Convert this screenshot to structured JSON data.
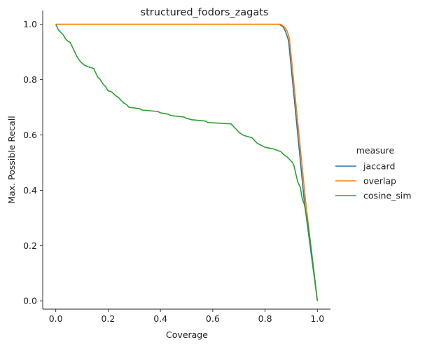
{
  "chart_data": {
    "type": "line",
    "title": "structured_fodors_zagats",
    "xlabel": "Coverage",
    "ylabel": "Max. Possible Recall",
    "xlim": [
      -0.05,
      1.05
    ],
    "ylim": [
      -0.03,
      1.05
    ],
    "xticks": [
      "0.0",
      "0.2",
      "0.4",
      "0.6",
      "0.8",
      "1.0"
    ],
    "yticks": [
      "0.0",
      "0.2",
      "0.4",
      "0.6",
      "0.8",
      "1.0"
    ],
    "grid": false,
    "legend": {
      "title": "measure",
      "placement": "right"
    },
    "series": [
      {
        "name": "jaccard",
        "color": "#1f77b4",
        "points": [
          [
            0.0,
            1.0
          ],
          [
            0.855,
            1.0
          ],
          [
            0.87,
            0.99
          ],
          [
            0.88,
            0.97
          ],
          [
            0.89,
            0.94
          ],
          [
            0.95,
            0.36
          ],
          [
            1.0,
            0.0
          ]
        ]
      },
      {
        "name": "overlap",
        "color": "#ff7f0e",
        "points": [
          [
            0.0,
            1.0
          ],
          [
            0.86,
            1.0
          ],
          [
            0.875,
            0.99
          ],
          [
            0.885,
            0.975
          ],
          [
            0.893,
            0.95
          ],
          [
            0.955,
            0.36
          ],
          [
            1.0,
            0.0
          ]
        ]
      },
      {
        "name": "cosine_sim",
        "color": "#2ca02c",
        "points": [
          [
            0.0,
            1.0
          ],
          [
            0.005,
            0.99
          ],
          [
            0.01,
            0.98
          ],
          [
            0.02,
            0.97
          ],
          [
            0.03,
            0.96
          ],
          [
            0.035,
            0.95
          ],
          [
            0.045,
            0.94
          ],
          [
            0.055,
            0.935
          ],
          [
            0.06,
            0.925
          ],
          [
            0.065,
            0.915
          ],
          [
            0.07,
            0.905
          ],
          [
            0.075,
            0.895
          ],
          [
            0.08,
            0.885
          ],
          [
            0.09,
            0.87
          ],
          [
            0.1,
            0.86
          ],
          [
            0.11,
            0.852
          ],
          [
            0.12,
            0.848
          ],
          [
            0.145,
            0.84
          ],
          [
            0.15,
            0.83
          ],
          [
            0.16,
            0.81
          ],
          [
            0.17,
            0.8
          ],
          [
            0.18,
            0.785
          ],
          [
            0.19,
            0.775
          ],
          [
            0.2,
            0.76
          ],
          [
            0.215,
            0.755
          ],
          [
            0.225,
            0.745
          ],
          [
            0.24,
            0.735
          ],
          [
            0.25,
            0.725
          ],
          [
            0.26,
            0.715
          ],
          [
            0.27,
            0.71
          ],
          [
            0.28,
            0.7
          ],
          [
            0.32,
            0.695
          ],
          [
            0.33,
            0.69
          ],
          [
            0.39,
            0.685
          ],
          [
            0.4,
            0.68
          ],
          [
            0.43,
            0.675
          ],
          [
            0.44,
            0.67
          ],
          [
            0.49,
            0.665
          ],
          [
            0.5,
            0.66
          ],
          [
            0.52,
            0.655
          ],
          [
            0.575,
            0.65
          ],
          [
            0.58,
            0.645
          ],
          [
            0.67,
            0.64
          ],
          [
            0.68,
            0.63
          ],
          [
            0.69,
            0.62
          ],
          [
            0.7,
            0.61
          ],
          [
            0.715,
            0.6
          ],
          [
            0.73,
            0.595
          ],
          [
            0.75,
            0.59
          ],
          [
            0.76,
            0.58
          ],
          [
            0.77,
            0.57
          ],
          [
            0.78,
            0.565
          ],
          [
            0.79,
            0.56
          ],
          [
            0.8,
            0.555
          ],
          [
            0.83,
            0.55
          ],
          [
            0.845,
            0.545
          ],
          [
            0.86,
            0.54
          ],
          [
            0.87,
            0.53
          ],
          [
            0.885,
            0.52
          ],
          [
            0.895,
            0.51
          ],
          [
            0.905,
            0.5
          ],
          [
            0.91,
            0.49
          ],
          [
            0.915,
            0.47
          ],
          [
            0.92,
            0.45
          ],
          [
            0.925,
            0.43
          ],
          [
            0.935,
            0.41
          ],
          [
            0.94,
            0.38
          ],
          [
            0.945,
            0.36
          ],
          [
            0.95,
            0.35
          ],
          [
            0.965,
            0.27
          ],
          [
            0.98,
            0.16
          ],
          [
            1.0,
            0.0
          ]
        ]
      }
    ]
  }
}
